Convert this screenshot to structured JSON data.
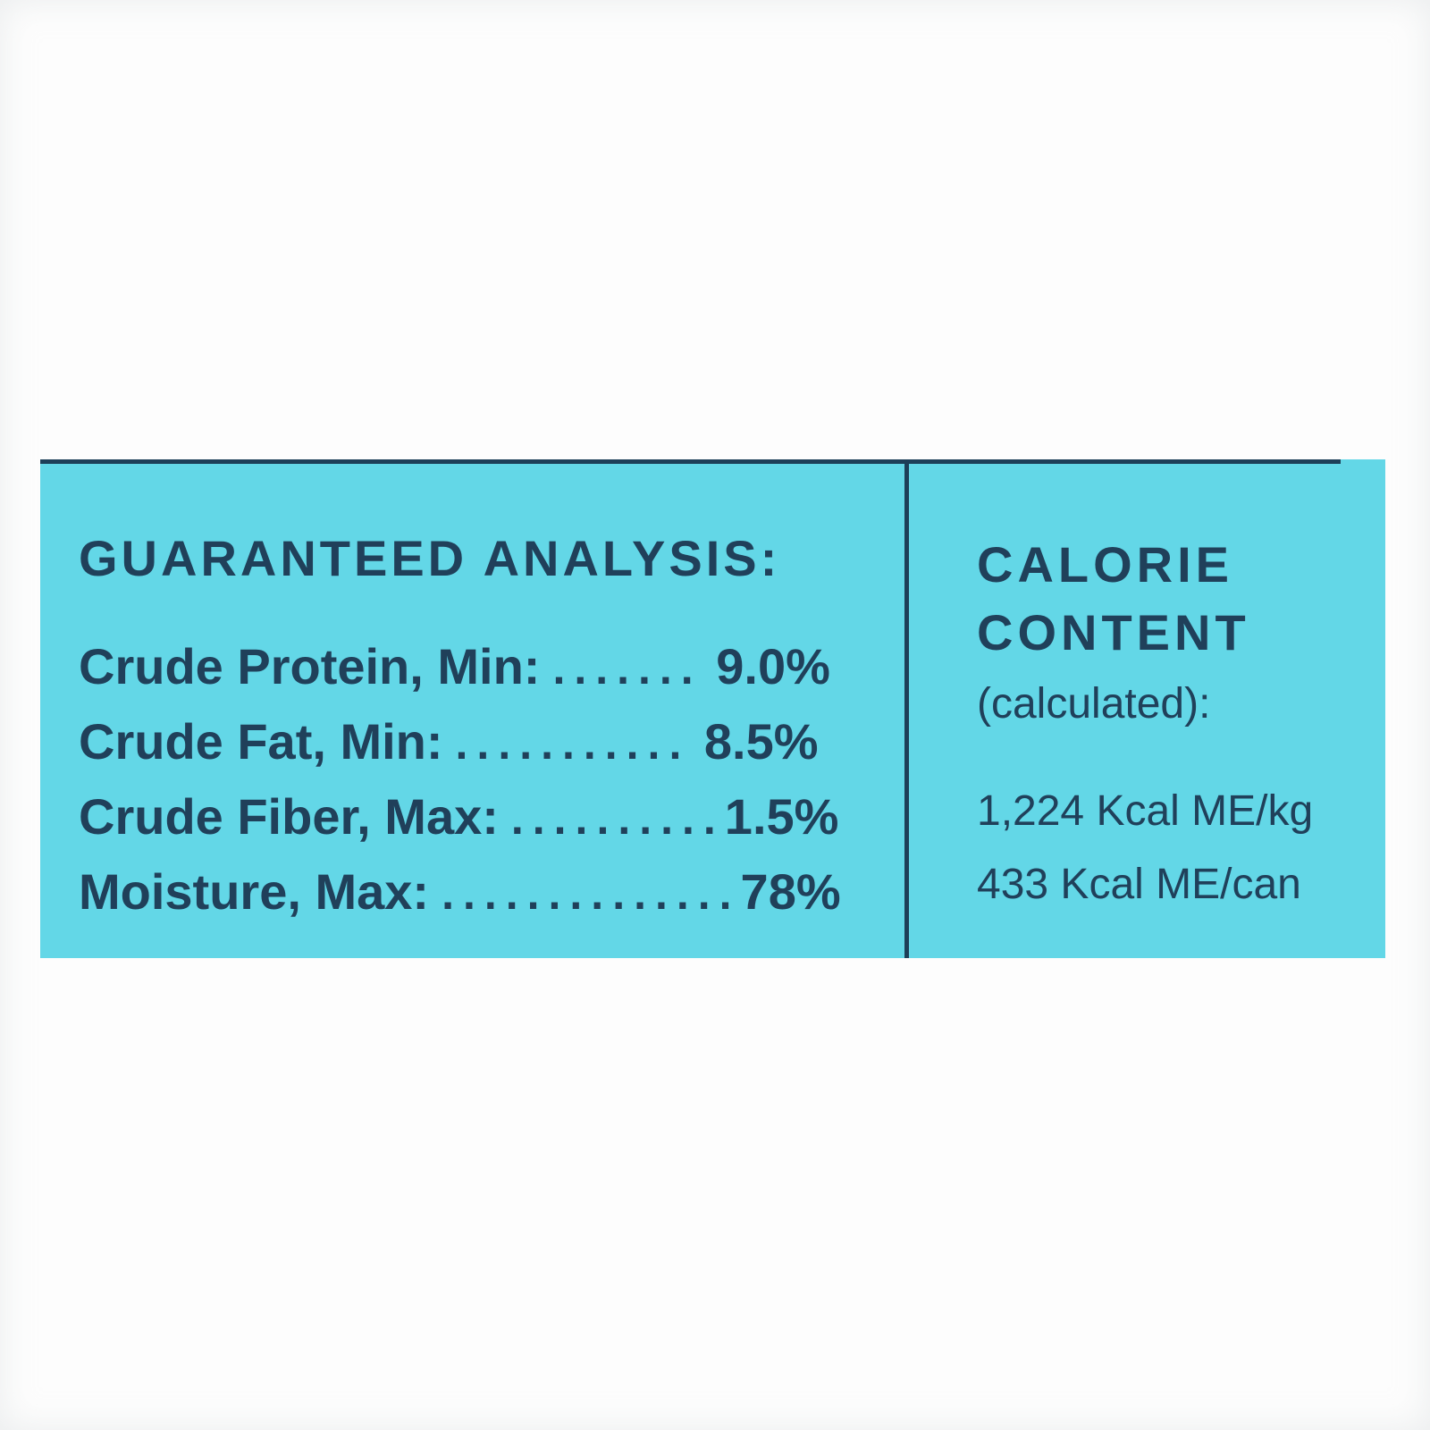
{
  "colors": {
    "panel_background": "#63d7e7",
    "ink": "#20405a",
    "page_background": "#fdfdfd"
  },
  "label": {
    "left": {
      "title": "GUARANTEED ANALYSIS:",
      "rows": [
        {
          "label": "Crude Protein, Min:",
          "leader": ".......",
          "value": " 9.0%"
        },
        {
          "label": "Crude Fat, Min:",
          "leader": "...........",
          "value": " 8.5%"
        },
        {
          "label": "Crude Fiber, Max:",
          "leader": "..........",
          "value": "1.5%"
        },
        {
          "label": "Moisture, Max:",
          "leader": "..............",
          "value": "78%"
        }
      ]
    },
    "right": {
      "title_line1": "CALORIE",
      "title_line2": "CONTENT",
      "subtitle": "(calculated):",
      "lines": [
        "1,224 Kcal ME/kg",
        "433 Kcal ME/can"
      ]
    }
  }
}
